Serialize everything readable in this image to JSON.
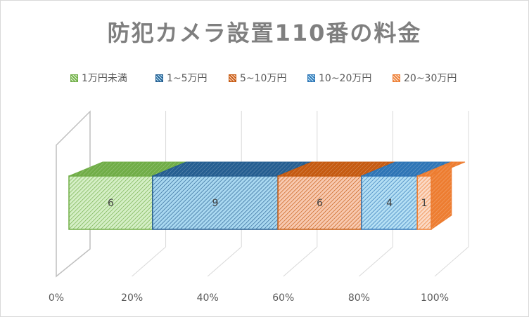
{
  "chart_data": {
    "type": "bar",
    "orientation": "horizontal",
    "stacked": "percent",
    "style": "3d",
    "title": "防犯カメラ設置110番の料金",
    "categories": [
      ""
    ],
    "series": [
      {
        "name": "1万円未満",
        "values": [
          6
        ],
        "color": "#70ad47",
        "fill": "#d5efc6"
      },
      {
        "name": "1~5万円",
        "values": [
          9
        ],
        "color": "#255e91",
        "fill": "#a9d8f0"
      },
      {
        "name": "5~10万円",
        "values": [
          6
        ],
        "color": "#c55a11",
        "fill": "#f8c9b0"
      },
      {
        "name": "10~20万円",
        "values": [
          4
        ],
        "color": "#2e75b6",
        "fill": "#b4dff4"
      },
      {
        "name": "20~30万円",
        "values": [
          1
        ],
        "color": "#ed7d31",
        "fill": "#fbd9c4"
      }
    ],
    "data_labels": [
      "6",
      "9",
      "6",
      "4",
      "1"
    ],
    "x_ticks": [
      "0%",
      "20%",
      "40%",
      "60%",
      "80%",
      "100%"
    ],
    "xlim": [
      0,
      1
    ],
    "legend_position": "top",
    "grid": true
  }
}
